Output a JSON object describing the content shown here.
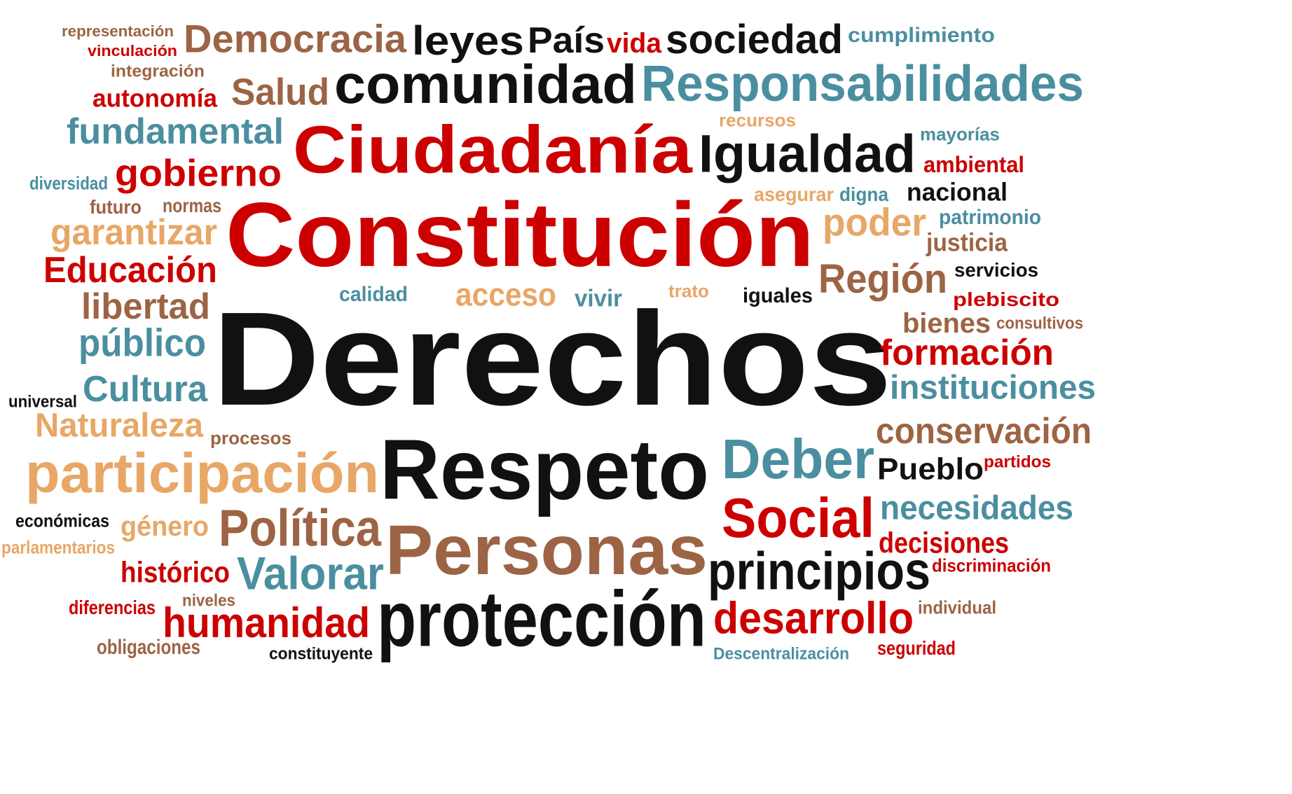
{
  "colors": {
    "red": "#cc0000",
    "black": "#111111",
    "teal": "#4a8fa0",
    "brown": "#9c6444",
    "tan": "#e8a766",
    "background": "#ffffff"
  },
  "words": [
    {
      "id": "derechos",
      "text": "Derechos",
      "color": "black"
    },
    {
      "id": "constitucion",
      "text": "Constitución",
      "color": "red"
    },
    {
      "id": "ciudadania",
      "text": "Ciudadanía",
      "color": "red"
    },
    {
      "id": "respeto",
      "text": "Respeto",
      "color": "black"
    },
    {
      "id": "personas",
      "text": "Personas",
      "color": "brown"
    },
    {
      "id": "proteccion",
      "text": "protección",
      "color": "black"
    },
    {
      "id": "responsabilidades",
      "text": "Responsabilidades",
      "color": "teal"
    },
    {
      "id": "comunidad",
      "text": "comunidad",
      "color": "black"
    },
    {
      "id": "igualdad",
      "text": "Igualdad",
      "color": "black"
    },
    {
      "id": "participacion",
      "text": "participación",
      "color": "tan"
    },
    {
      "id": "democracia",
      "text": "Democracia",
      "color": "brown"
    },
    {
      "id": "leyes",
      "text": "leyes",
      "color": "black"
    },
    {
      "id": "pais",
      "text": "País",
      "color": "black"
    },
    {
      "id": "vida",
      "text": "vida",
      "color": "red"
    },
    {
      "id": "sociedad",
      "text": "sociedad",
      "color": "black"
    },
    {
      "id": "cumplimiento",
      "text": "cumplimiento",
      "color": "teal"
    },
    {
      "id": "representacion",
      "text": "representación",
      "color": "brown"
    },
    {
      "id": "vinculacion",
      "text": "vinculación",
      "color": "red"
    },
    {
      "id": "integracion",
      "text": "integración",
      "color": "brown"
    },
    {
      "id": "autonomia",
      "text": "autonomía",
      "color": "red"
    },
    {
      "id": "salud",
      "text": "Salud",
      "color": "brown"
    },
    {
      "id": "fundamental",
      "text": "fundamental",
      "color": "teal"
    },
    {
      "id": "recursos",
      "text": "recursos",
      "color": "tan"
    },
    {
      "id": "mayorias",
      "text": "mayorías",
      "color": "teal"
    },
    {
      "id": "ambiental",
      "text": "ambiental",
      "color": "red"
    },
    {
      "id": "gobierno",
      "text": "gobierno",
      "color": "red"
    },
    {
      "id": "diversidad",
      "text": "diversidad",
      "color": "teal"
    },
    {
      "id": "asegurar",
      "text": "asegurar",
      "color": "tan"
    },
    {
      "id": "digna",
      "text": "digna",
      "color": "teal"
    },
    {
      "id": "nacional",
      "text": "nacional",
      "color": "black"
    },
    {
      "id": "futuro",
      "text": "futuro",
      "color": "brown"
    },
    {
      "id": "normas",
      "text": "normas",
      "color": "brown"
    },
    {
      "id": "garantizar",
      "text": "garantizar",
      "color": "tan"
    },
    {
      "id": "poder",
      "text": "poder",
      "color": "tan"
    },
    {
      "id": "patrimonio",
      "text": "patrimonio",
      "color": "teal"
    },
    {
      "id": "justicia",
      "text": "justicia",
      "color": "brown"
    },
    {
      "id": "educacion",
      "text": "Educación",
      "color": "red"
    },
    {
      "id": "region",
      "text": "Región",
      "color": "brown"
    },
    {
      "id": "servicios",
      "text": "servicios",
      "color": "black"
    },
    {
      "id": "acceso",
      "text": "acceso",
      "color": "tan"
    },
    {
      "id": "calidad",
      "text": "calidad",
      "color": "teal"
    },
    {
      "id": "vivir",
      "text": "vivir",
      "color": "teal"
    },
    {
      "id": "trato",
      "text": "trato",
      "color": "tan"
    },
    {
      "id": "iguales",
      "text": "iguales",
      "color": "black"
    },
    {
      "id": "plebiscito",
      "text": "plebiscito",
      "color": "red"
    },
    {
      "id": "libertad",
      "text": "libertad",
      "color": "brown"
    },
    {
      "id": "bienes",
      "text": "bienes",
      "color": "brown"
    },
    {
      "id": "consultivos",
      "text": "consultivos",
      "color": "brown"
    },
    {
      "id": "publico",
      "text": "público",
      "color": "teal"
    },
    {
      "id": "formacion",
      "text": "formación",
      "color": "red"
    },
    {
      "id": "instituciones",
      "text": "instituciones",
      "color": "teal"
    },
    {
      "id": "cultura",
      "text": "Cultura",
      "color": "teal"
    },
    {
      "id": "universal",
      "text": "universal",
      "color": "black"
    },
    {
      "id": "naturaleza",
      "text": "Naturaleza",
      "color": "tan"
    },
    {
      "id": "procesos",
      "text": "procesos",
      "color": "brown"
    },
    {
      "id": "conservacion",
      "text": "conservación",
      "color": "brown"
    },
    {
      "id": "deber",
      "text": "Deber",
      "color": "teal"
    },
    {
      "id": "partidos",
      "text": "partidos",
      "color": "red"
    },
    {
      "id": "pueblo",
      "text": "Pueblo",
      "color": "black"
    },
    {
      "id": "social",
      "text": "Social",
      "color": "red"
    },
    {
      "id": "necesidades",
      "text": "necesidades",
      "color": "teal"
    },
    {
      "id": "economicas",
      "text": "económicas",
      "color": "black"
    },
    {
      "id": "genero",
      "text": "género",
      "color": "tan"
    },
    {
      "id": "politica",
      "text": "Política",
      "color": "brown"
    },
    {
      "id": "parlamentarios",
      "text": "parlamentarios",
      "color": "tan"
    },
    {
      "id": "decisiones",
      "text": "decisiones",
      "color": "red"
    },
    {
      "id": "historico",
      "text": "histórico",
      "color": "red"
    },
    {
      "id": "valorar",
      "text": "Valorar",
      "color": "teal"
    },
    {
      "id": "principios",
      "text": "principios",
      "color": "black"
    },
    {
      "id": "discriminacion",
      "text": "discriminación",
      "color": "red"
    },
    {
      "id": "diferencias",
      "text": "diferencias",
      "color": "red"
    },
    {
      "id": "niveles",
      "text": "niveles",
      "color": "brown"
    },
    {
      "id": "humanidad",
      "text": "humanidad",
      "color": "red"
    },
    {
      "id": "desarrollo",
      "text": "desarrollo",
      "color": "red"
    },
    {
      "id": "individual",
      "text": "individual",
      "color": "brown"
    },
    {
      "id": "obligaciones",
      "text": "obligaciones",
      "color": "brown"
    },
    {
      "id": "constituyente",
      "text": "constituyente",
      "color": "black"
    },
    {
      "id": "descentralizacion",
      "text": "Descentralización",
      "color": "teal"
    },
    {
      "id": "seguridad",
      "text": "seguridad",
      "color": "red"
    }
  ]
}
